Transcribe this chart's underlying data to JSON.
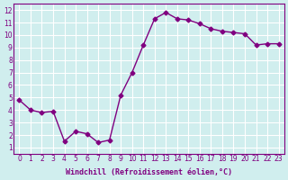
{
  "x": [
    0,
    1,
    2,
    3,
    4,
    5,
    6,
    7,
    8,
    9,
    10,
    11,
    12,
    13,
    14,
    15,
    16,
    17,
    18,
    19,
    20,
    21,
    22,
    23
  ],
  "y": [
    4.8,
    4.0,
    3.8,
    3.9,
    1.5,
    2.3,
    2.1,
    1.4,
    1.6,
    5.2,
    7.0,
    9.2,
    11.3,
    11.8,
    11.3,
    11.2,
    10.9,
    10.5,
    10.3,
    10.2,
    10.1,
    9.2,
    9.3,
    9.3
  ],
  "line_color": "#800080",
  "marker": "D",
  "marker_size": 2.5,
  "bg_color": "#d0eeee",
  "grid_color": "#ffffff",
  "xlabel": "Windchill (Refroidissement éolien,°C)",
  "xlabel_color": "#800080",
  "tick_color": "#800080",
  "xlim": [
    -0.5,
    23.5
  ],
  "ylim": [
    0.5,
    12.5
  ],
  "yticks": [
    1,
    2,
    3,
    4,
    5,
    6,
    7,
    8,
    9,
    10,
    11,
    12
  ],
  "xticks": [
    0,
    1,
    2,
    3,
    4,
    5,
    6,
    7,
    8,
    9,
    10,
    11,
    12,
    13,
    14,
    15,
    16,
    17,
    18,
    19,
    20,
    21,
    22,
    23
  ]
}
